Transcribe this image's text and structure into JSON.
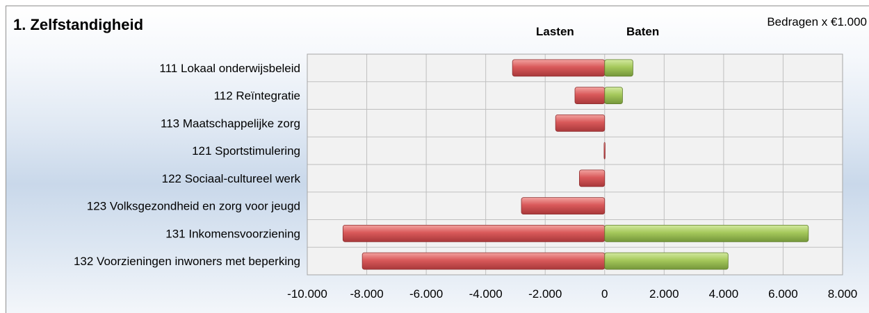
{
  "chart_data": {
    "type": "bar",
    "orientation": "horizontal",
    "title": "1. Zelfstandigheid",
    "units_note": "Bedragen x €1.000",
    "headers": {
      "left": "Lasten",
      "right": "Baten"
    },
    "categories": [
      "111 Lokaal onderwijsbeleid",
      "112 Reïntegratie",
      "113 Maatschappelijke zorg",
      "121 Sportstimulering",
      "122 Sociaal-cultureel werk",
      "123 Volksgezondheid en zorg voor jeugd",
      "131 Inkomensvoorziening",
      "132 Voorzieningen inwoners met beperking"
    ],
    "series": [
      {
        "name": "Lasten",
        "color": "#d9595a",
        "values": [
          -3100,
          -1000,
          -1650,
          -20,
          -850,
          -2800,
          -8800,
          -8150
        ]
      },
      {
        "name": "Baten",
        "color": "#a5c85b",
        "values": [
          950,
          600,
          0,
          0,
          0,
          0,
          6850,
          4150
        ]
      }
    ],
    "xlim": [
      -10000,
      8000
    ],
    "xticks": [
      -10000,
      -8000,
      -6000,
      -4000,
      -2000,
      0,
      2000,
      4000,
      6000,
      8000
    ],
    "xtick_labels": [
      "-10.000",
      "-8.000",
      "-6.000",
      "-4.000",
      "-2.000",
      "0",
      "2.000",
      "4.000",
      "6.000",
      "8.000"
    ],
    "grid": true,
    "legend": "none"
  }
}
